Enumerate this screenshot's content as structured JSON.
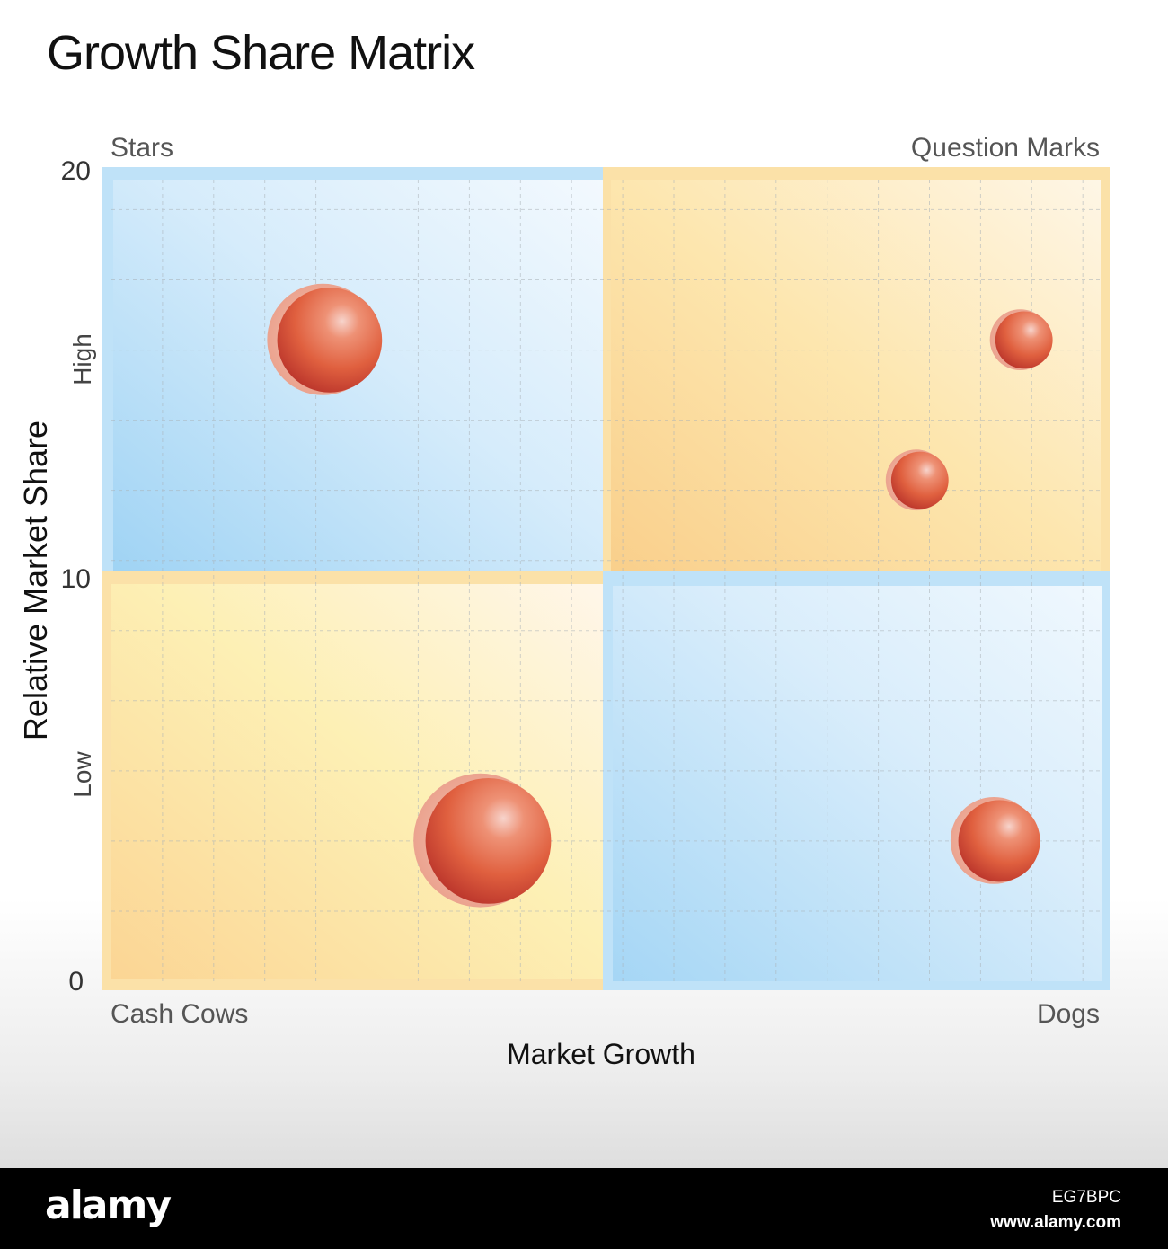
{
  "chart_data": {
    "type": "scatter",
    "title": "Growth Share Matrix",
    "xlabel": "Market Growth",
    "ylabel": "Relative Market Share",
    "ylim": [
      0,
      20
    ],
    "y_ticks": [
      "0",
      "10",
      "20"
    ],
    "y_band_labels": {
      "high": "High",
      "low": "Low"
    },
    "quadrants": {
      "top_left": "Stars",
      "top_right": "Question Marks",
      "bottom_left": "Cash Cows",
      "bottom_right": "Dogs"
    },
    "grid": true,
    "points": [
      {
        "quadrant": "Stars",
        "x": 0.44,
        "y": 16.0,
        "size": 1.0
      },
      {
        "quadrant": "Question Marks",
        "x": 0.84,
        "y": 16.0,
        "size": 0.45
      },
      {
        "quadrant": "Question Marks",
        "x": 0.63,
        "y": 12.5,
        "size": 0.45
      },
      {
        "quadrant": "Cash Cows",
        "x": 0.76,
        "y": 3.5,
        "size": 1.2
      },
      {
        "quadrant": "Dogs",
        "x": 0.79,
        "y": 3.5,
        "size": 0.78
      }
    ],
    "colors": {
      "blue_quadrant": "#b3dcf5",
      "yellow_quadrant": "#fde9a8",
      "orange_quadrant": "#fbd48e",
      "bubble": "#e0553a",
      "bubble_shadow": "#f1b9a8"
    }
  },
  "footer": {
    "logo": "alamy",
    "image_id": "EG7BPC",
    "url": "www.alamy.com"
  }
}
